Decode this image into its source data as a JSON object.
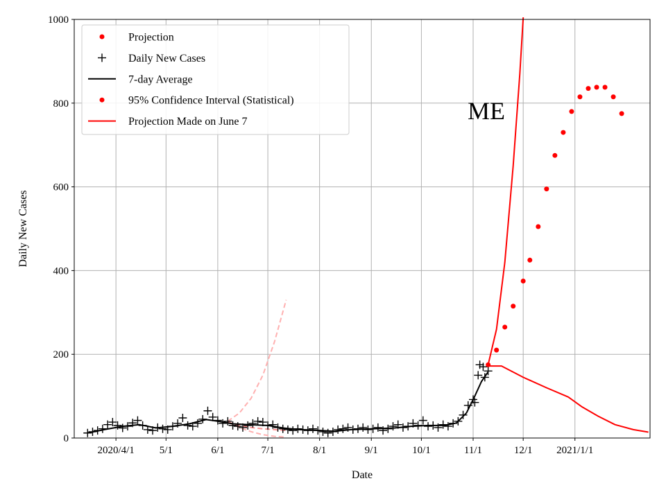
{
  "chart_data": {
    "type": "line",
    "annotation": "ME",
    "xlabel": "Date",
    "ylabel": "Daily New Cases",
    "ylim": [
      0,
      1000
    ],
    "xlim": [
      "2020-03-07",
      "2021-02-15"
    ],
    "grid": true,
    "legend_position": "top-left",
    "y_ticks": [
      0,
      200,
      400,
      600,
      800,
      1000
    ],
    "x_ticks": [
      {
        "date": "2020-04-01",
        "label": "2020/4/1"
      },
      {
        "date": "2020-05-01",
        "label": "5/1"
      },
      {
        "date": "2020-06-01",
        "label": "6/1"
      },
      {
        "date": "2020-07-01",
        "label": "7/1"
      },
      {
        "date": "2020-08-01",
        "label": "8/1"
      },
      {
        "date": "2020-09-01",
        "label": "9/1"
      },
      {
        "date": "2020-10-01",
        "label": "10/1"
      },
      {
        "date": "2020-11-01",
        "label": "11/1"
      },
      {
        "date": "2020-12-01",
        "label": "12/1"
      },
      {
        "date": "2021-01-01",
        "label": "2021/1/1"
      }
    ],
    "legend": [
      {
        "label": "Projection",
        "marker": "dot",
        "color": "#ff0000"
      },
      {
        "label": "Daily New Cases",
        "marker": "plus",
        "color": "#000000"
      },
      {
        "label": "7-day Average",
        "marker": "line",
        "color": "#000000"
      },
      {
        "label": "95% Confidence Interval (Statistical)",
        "marker": "dot",
        "color": "#ff0000"
      },
      {
        "label": "Projection Made on June 7",
        "marker": "line",
        "color": "#ff0000"
      }
    ],
    "series": [
      {
        "name": "Daily New Cases",
        "style": "plus",
        "color": "#000000",
        "points": [
          [
            "2020-03-15",
            12
          ],
          [
            "2020-03-18",
            15
          ],
          [
            "2020-03-21",
            18
          ],
          [
            "2020-03-24",
            22
          ],
          [
            "2020-03-27",
            32
          ],
          [
            "2020-03-30",
            38
          ],
          [
            "2020-04-02",
            30
          ],
          [
            "2020-04-05",
            24
          ],
          [
            "2020-04-08",
            28
          ],
          [
            "2020-04-11",
            36
          ],
          [
            "2020-04-14",
            42
          ],
          [
            "2020-04-17",
            30
          ],
          [
            "2020-04-20",
            20
          ],
          [
            "2020-04-23",
            18
          ],
          [
            "2020-04-26",
            25
          ],
          [
            "2020-04-29",
            22
          ],
          [
            "2020-05-02",
            20
          ],
          [
            "2020-05-05",
            28
          ],
          [
            "2020-05-08",
            35
          ],
          [
            "2020-05-11",
            48
          ],
          [
            "2020-05-14",
            30
          ],
          [
            "2020-05-17",
            28
          ],
          [
            "2020-05-20",
            35
          ],
          [
            "2020-05-23",
            45
          ],
          [
            "2020-05-26",
            65
          ],
          [
            "2020-05-29",
            50
          ],
          [
            "2020-06-01",
            42
          ],
          [
            "2020-06-04",
            35
          ],
          [
            "2020-06-07",
            40
          ],
          [
            "2020-06-10",
            30
          ],
          [
            "2020-06-13",
            28
          ],
          [
            "2020-06-16",
            25
          ],
          [
            "2020-06-19",
            30
          ],
          [
            "2020-06-22",
            35
          ],
          [
            "2020-06-25",
            40
          ],
          [
            "2020-06-28",
            38
          ],
          [
            "2020-07-01",
            30
          ],
          [
            "2020-07-04",
            32
          ],
          [
            "2020-07-07",
            25
          ],
          [
            "2020-07-10",
            22
          ],
          [
            "2020-07-13",
            20
          ],
          [
            "2020-07-16",
            18
          ],
          [
            "2020-07-19",
            22
          ],
          [
            "2020-07-22",
            20
          ],
          [
            "2020-07-25",
            18
          ],
          [
            "2020-07-28",
            22
          ],
          [
            "2020-07-31",
            18
          ],
          [
            "2020-08-03",
            15
          ],
          [
            "2020-08-06",
            12
          ],
          [
            "2020-08-09",
            15
          ],
          [
            "2020-08-12",
            20
          ],
          [
            "2020-08-15",
            22
          ],
          [
            "2020-08-18",
            25
          ],
          [
            "2020-08-21",
            20
          ],
          [
            "2020-08-24",
            22
          ],
          [
            "2020-08-27",
            25
          ],
          [
            "2020-08-30",
            20
          ],
          [
            "2020-09-02",
            22
          ],
          [
            "2020-09-05",
            25
          ],
          [
            "2020-09-08",
            18
          ],
          [
            "2020-09-11",
            22
          ],
          [
            "2020-09-14",
            28
          ],
          [
            "2020-09-17",
            32
          ],
          [
            "2020-09-20",
            25
          ],
          [
            "2020-09-23",
            28
          ],
          [
            "2020-09-26",
            35
          ],
          [
            "2020-09-29",
            30
          ],
          [
            "2020-10-02",
            42
          ],
          [
            "2020-10-05",
            28
          ],
          [
            "2020-10-08",
            30
          ],
          [
            "2020-10-11",
            25
          ],
          [
            "2020-10-14",
            32
          ],
          [
            "2020-10-17",
            28
          ],
          [
            "2020-10-20",
            35
          ],
          [
            "2020-10-23",
            40
          ],
          [
            "2020-10-26",
            55
          ],
          [
            "2020-10-29",
            78
          ],
          [
            "2020-11-01",
            92
          ],
          [
            "2020-11-02",
            85
          ],
          [
            "2020-11-04",
            150
          ],
          [
            "2020-11-05",
            175
          ],
          [
            "2020-11-07",
            170
          ],
          [
            "2020-11-08",
            145
          ],
          [
            "2020-11-10",
            160
          ]
        ]
      },
      {
        "name": "7-day Average",
        "style": "line",
        "color": "#000000",
        "points": [
          [
            "2020-03-15",
            12
          ],
          [
            "2020-03-25",
            20
          ],
          [
            "2020-04-05",
            28
          ],
          [
            "2020-04-15",
            32
          ],
          [
            "2020-04-25",
            24
          ],
          [
            "2020-05-05",
            28
          ],
          [
            "2020-05-15",
            34
          ],
          [
            "2020-05-25",
            44
          ],
          [
            "2020-06-01",
            40
          ],
          [
            "2020-06-10",
            34
          ],
          [
            "2020-06-20",
            32
          ],
          [
            "2020-07-01",
            30
          ],
          [
            "2020-07-10",
            24
          ],
          [
            "2020-07-20",
            20
          ],
          [
            "2020-08-01",
            18
          ],
          [
            "2020-08-10",
            16
          ],
          [
            "2020-08-20",
            20
          ],
          [
            "2020-09-01",
            22
          ],
          [
            "2020-09-15",
            24
          ],
          [
            "2020-09-25",
            28
          ],
          [
            "2020-10-05",
            30
          ],
          [
            "2020-10-15",
            30
          ],
          [
            "2020-10-22",
            36
          ],
          [
            "2020-10-28",
            60
          ],
          [
            "2020-11-02",
            100
          ],
          [
            "2020-11-06",
            135
          ],
          [
            "2020-11-10",
            158
          ]
        ]
      },
      {
        "name": "Projection",
        "style": "dot",
        "color": "#ff0000",
        "points": [
          [
            "2020-11-10",
            175
          ],
          [
            "2020-11-15",
            210
          ],
          [
            "2020-11-20",
            265
          ],
          [
            "2020-11-25",
            315
          ],
          [
            "2020-12-01",
            375
          ],
          [
            "2020-12-05",
            425
          ],
          [
            "2020-12-10",
            505
          ],
          [
            "2020-12-15",
            595
          ],
          [
            "2020-12-20",
            675
          ],
          [
            "2020-12-25",
            730
          ],
          [
            "2020-12-30",
            780
          ],
          [
            "2021-01-04",
            815
          ],
          [
            "2021-01-09",
            835
          ],
          [
            "2021-01-14",
            838
          ],
          [
            "2021-01-19",
            838
          ],
          [
            "2021-01-24",
            815
          ],
          [
            "2021-01-29",
            775
          ]
        ]
      },
      {
        "name": "95% Confidence Interval (Statistical) upper",
        "style": "line",
        "color": "#ff0000",
        "points": [
          [
            "2020-11-10",
            175
          ],
          [
            "2020-11-15",
            260
          ],
          [
            "2020-11-20",
            420
          ],
          [
            "2020-11-25",
            650
          ],
          [
            "2020-11-29",
            870
          ],
          [
            "2020-12-01",
            1005
          ]
        ]
      },
      {
        "name": "95% Confidence Interval (Statistical) lower",
        "style": "line",
        "color": "#ff0000",
        "points": [
          [
            "2020-11-10",
            172
          ],
          [
            "2020-11-18",
            172
          ],
          [
            "2020-12-01",
            145
          ],
          [
            "2020-12-15",
            120
          ],
          [
            "2020-12-28",
            98
          ],
          [
            "2021-01-05",
            75
          ],
          [
            "2021-01-15",
            52
          ],
          [
            "2021-01-25",
            32
          ],
          [
            "2021-02-05",
            20
          ],
          [
            "2021-02-14",
            14
          ]
        ]
      },
      {
        "name": "Projection Made on June 7 upper",
        "style": "dashed",
        "color": "#ffb0b0",
        "points": [
          [
            "2020-06-07",
            40
          ],
          [
            "2020-06-14",
            60
          ],
          [
            "2020-06-21",
            95
          ],
          [
            "2020-06-28",
            150
          ],
          [
            "2020-07-05",
            230
          ],
          [
            "2020-07-12",
            330
          ]
        ]
      },
      {
        "name": "Projection Made on June 7 lower",
        "style": "dashed",
        "color": "#ffb0b0",
        "points": [
          [
            "2020-06-07",
            38
          ],
          [
            "2020-06-14",
            25
          ],
          [
            "2020-06-21",
            15
          ],
          [
            "2020-06-28",
            8
          ],
          [
            "2020-07-05",
            4
          ],
          [
            "2020-07-12",
            2
          ]
        ]
      },
      {
        "name": "Projection Made on June 7 mid",
        "style": "dashed",
        "color": "#ff9090",
        "points": [
          [
            "2020-06-07",
            38
          ],
          [
            "2020-06-14",
            30
          ],
          [
            "2020-06-21",
            25
          ],
          [
            "2020-06-28",
            22
          ],
          [
            "2020-07-05",
            20
          ],
          [
            "2020-07-12",
            18
          ]
        ]
      }
    ]
  }
}
